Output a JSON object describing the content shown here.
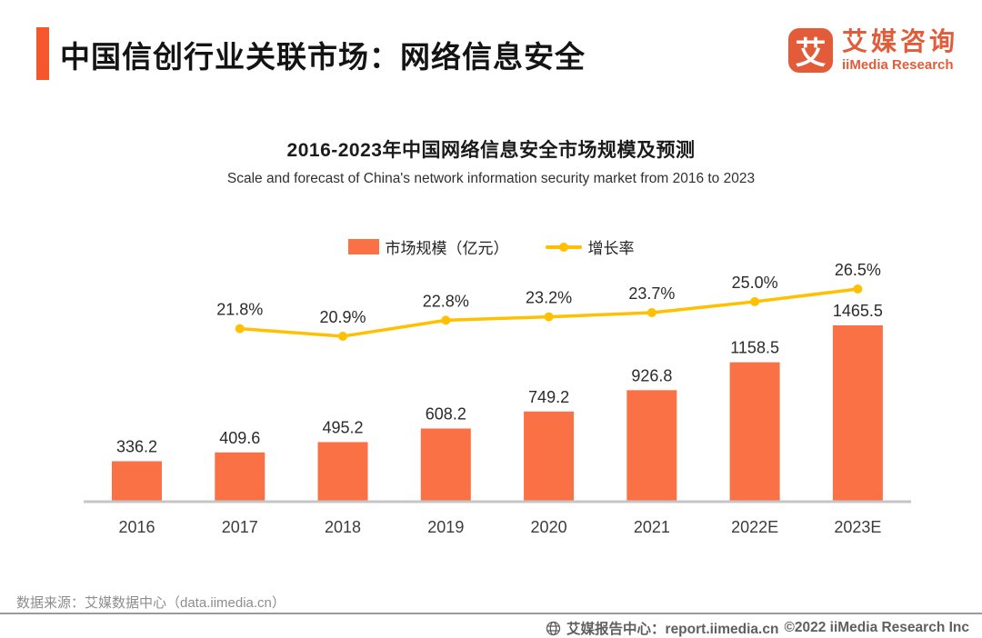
{
  "header": {
    "title": "中国信创行业关联市场：网络信息安全",
    "logo": {
      "mark": "艾",
      "name_cn": "艾媒咨询",
      "name_en": "iiMedia Research"
    }
  },
  "chart": {
    "title": "2016-2023年中国网络信息安全市场规模及预测",
    "subtitle": "Scale and forecast of China's network information security market from 2016 to 2023",
    "legend": [
      {
        "label": "市场规模（亿元）",
        "marker": "bar-swatch",
        "color": "#fa7145"
      },
      {
        "label": "增长率",
        "marker": "line-dot",
        "color": "#ffc000"
      }
    ]
  },
  "chart_data": {
    "type": "bar",
    "combo": "bar+line",
    "title": "2016-2023年中国网络信息安全市场规模及预测",
    "subtitle": "Scale and forecast of China's network information security market from 2016 to 2023",
    "categories": [
      "2016",
      "2017",
      "2018",
      "2019",
      "2020",
      "2021",
      "2022E",
      "2023E"
    ],
    "series": [
      {
        "name": "市场规模（亿元）",
        "type": "bar",
        "color": "#fa7145",
        "values": [
          336.2,
          409.6,
          495.2,
          608.2,
          749.2,
          926.8,
          1158.5,
          1465.5
        ]
      },
      {
        "name": "增长率",
        "type": "line",
        "color": "#ffc000",
        "unit": "%",
        "values": [
          null,
          21.8,
          20.9,
          22.8,
          23.2,
          23.7,
          25.0,
          26.5
        ]
      }
    ],
    "value_labels": true,
    "legend_position": "top-center",
    "grid": false,
    "y_axis_hidden": true,
    "baseline_color": "#c6c6c6",
    "label_color": "#2b2b2b",
    "x_label_color": "#3c3c3c"
  },
  "footer": {
    "source": "数据来源：艾媒数据中心（data.iimedia.cn）",
    "report_center": "艾媒报告中心：report.iimedia.cn",
    "copyright": "©2022  iiMedia Research Inc"
  }
}
